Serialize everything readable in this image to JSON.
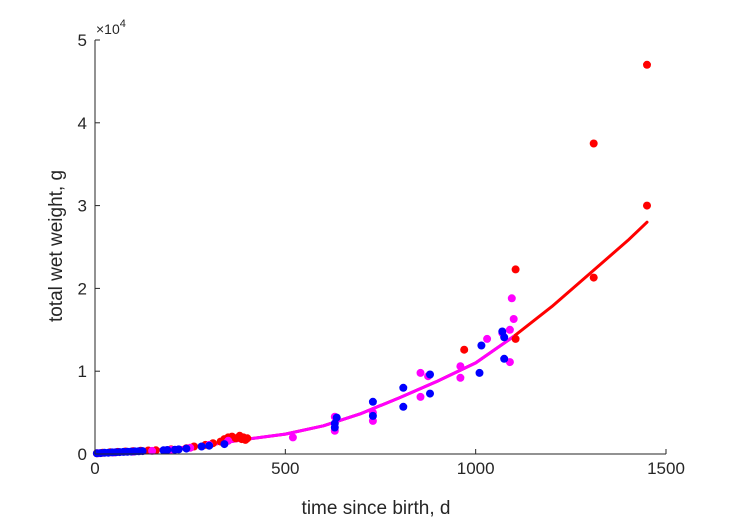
{
  "chart_data": {
    "type": "scatter",
    "xlabel": "time since birth, d",
    "ylabel": "total wet weight, g",
    "xlim": [
      0,
      1500
    ],
    "ylim": [
      0,
      50000
    ],
    "x_ticks": [
      0,
      500,
      1000,
      1500
    ],
    "y_ticks": [
      0,
      1,
      2,
      3,
      4,
      5
    ],
    "x_tick_labels": [
      "0",
      "500",
      "1000",
      "1500"
    ],
    "y_tick_labels": [
      "0",
      "1",
      "2",
      "3",
      "4",
      "5"
    ],
    "y_scale_exponent_label": "×10",
    "y_scale_exponent": "4",
    "grid": false,
    "legend": "none",
    "series": [
      {
        "kind": "points",
        "color": "#ff0000",
        "points": [
          [
            5,
            80
          ],
          [
            20,
            150
          ],
          [
            40,
            200
          ],
          [
            60,
            250
          ],
          [
            80,
            300
          ],
          [
            100,
            350
          ],
          [
            120,
            400
          ],
          [
            140,
            420
          ],
          [
            160,
            450
          ],
          [
            200,
            550
          ],
          [
            240,
            700
          ],
          [
            260,
            900
          ],
          [
            290,
            1100
          ],
          [
            310,
            1300
          ],
          [
            330,
            1500
          ],
          [
            340,
            1800
          ],
          [
            350,
            2000
          ],
          [
            360,
            2100
          ],
          [
            370,
            1900
          ],
          [
            380,
            2200
          ],
          [
            385,
            1800
          ],
          [
            390,
            2000
          ],
          [
            395,
            1700
          ],
          [
            400,
            1900
          ],
          [
            970,
            12600
          ],
          [
            1105,
            22300
          ],
          [
            1105,
            13900
          ],
          [
            1310,
            21300
          ],
          [
            1310,
            37500
          ],
          [
            1450,
            30000
          ],
          [
            1450,
            47000
          ]
        ]
      },
      {
        "kind": "points",
        "color": "#ff00ff",
        "points": [
          [
            10,
            100
          ],
          [
            50,
            180
          ],
          [
            100,
            280
          ],
          [
            150,
            380
          ],
          [
            200,
            500
          ],
          [
            250,
            750
          ],
          [
            300,
            1100
          ],
          [
            350,
            1600
          ],
          [
            520,
            2000
          ],
          [
            630,
            2800
          ],
          [
            630,
            4500
          ],
          [
            730,
            4000
          ],
          [
            730,
            5000
          ],
          [
            855,
            6900
          ],
          [
            855,
            9800
          ],
          [
            875,
            9400
          ],
          [
            960,
            9200
          ],
          [
            960,
            10600
          ],
          [
            1030,
            13900
          ],
          [
            1090,
            11100
          ],
          [
            1090,
            15000
          ],
          [
            1095,
            18800
          ],
          [
            1100,
            16300
          ],
          [
            1070,
            14600
          ]
        ]
      },
      {
        "kind": "points",
        "color": "#0000ff",
        "points": [
          [
            5,
            80
          ],
          [
            15,
            110
          ],
          [
            25,
            140
          ],
          [
            35,
            160
          ],
          [
            45,
            190
          ],
          [
            55,
            210
          ],
          [
            65,
            230
          ],
          [
            75,
            250
          ],
          [
            85,
            270
          ],
          [
            95,
            290
          ],
          [
            105,
            310
          ],
          [
            115,
            330
          ],
          [
            125,
            350
          ],
          [
            180,
            450
          ],
          [
            190,
            480
          ],
          [
            210,
            520
          ],
          [
            220,
            560
          ],
          [
            240,
            650
          ],
          [
            280,
            900
          ],
          [
            300,
            1000
          ],
          [
            340,
            1200
          ],
          [
            630,
            3200
          ],
          [
            630,
            3700
          ],
          [
            635,
            4400
          ],
          [
            730,
            4600
          ],
          [
            730,
            6300
          ],
          [
            810,
            5700
          ],
          [
            810,
            8000
          ],
          [
            880,
            7300
          ],
          [
            880,
            9600
          ],
          [
            1010,
            9800
          ],
          [
            1015,
            13100
          ],
          [
            1070,
            14800
          ],
          [
            1075,
            11500
          ],
          [
            1075,
            14100
          ]
        ]
      },
      {
        "kind": "curve",
        "color": "#ff0000",
        "x": [
          0,
          100,
          200,
          300,
          400,
          500,
          600,
          700,
          800,
          900,
          1000,
          1100,
          1200,
          1300,
          1400,
          1450
        ],
        "y": [
          0,
          300,
          650,
          1100,
          1800,
          2400,
          3400,
          4900,
          6800,
          8800,
          11000,
          14200,
          17800,
          21800,
          25800,
          28000
        ]
      },
      {
        "kind": "curve",
        "color": "#ff00ff",
        "x": [
          0,
          100,
          200,
          300,
          400,
          500,
          600,
          700,
          800,
          900,
          1000,
          1100
        ],
        "y": [
          0,
          300,
          650,
          1100,
          1800,
          2400,
          3400,
          4900,
          6800,
          8800,
          11000,
          14200
        ]
      }
    ]
  }
}
